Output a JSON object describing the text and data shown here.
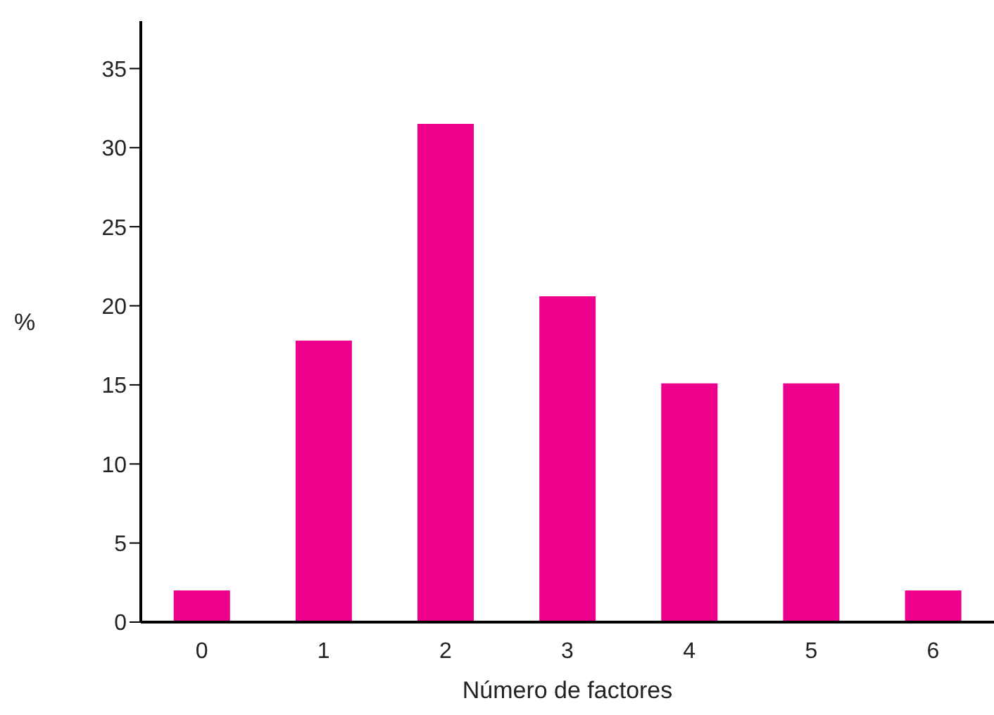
{
  "chart_data": {
    "type": "bar",
    "xlabel": "Número de factores",
    "ylabel": "%",
    "categories": [
      "0",
      "1",
      "2",
      "3",
      "4",
      "5",
      "6"
    ],
    "values": [
      2,
      17.8,
      31.5,
      20.6,
      15.1,
      15.1,
      2
    ],
    "color": "#ec008c",
    "ylim": [
      0,
      38
    ],
    "yticks": [
      0,
      5,
      10,
      15,
      20,
      25,
      30,
      35
    ],
    "grid": false,
    "legend": false
  }
}
